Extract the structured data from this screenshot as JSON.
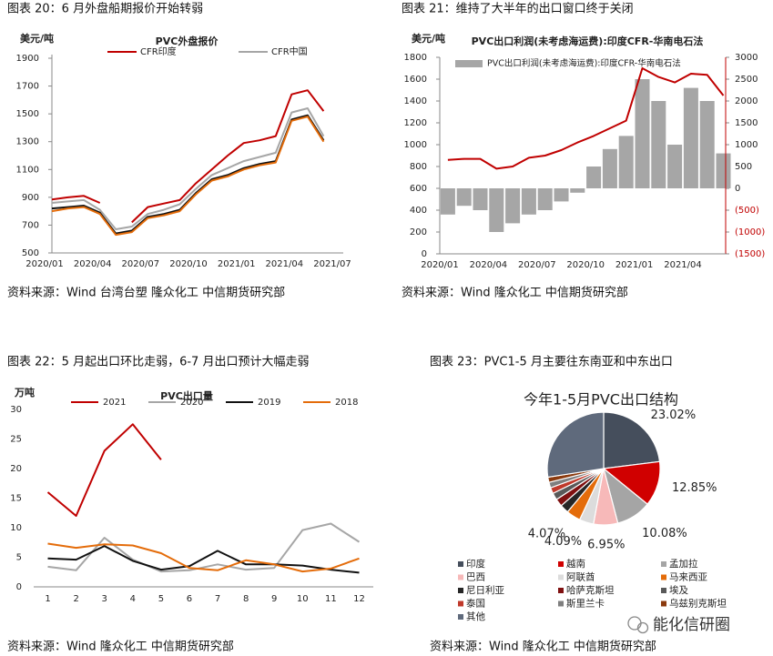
{
  "captions": [
    "图表 20：6 月外盘船期报价开始转弱",
    "图表 21：维持了大半年的出口窗口终于关闭",
    "图表 22：5 月起出口环比走弱，6-7 月出口预计大幅走弱",
    "图表 23：PVC1-5 月主要往东南亚和中东出口"
  ],
  "sources": [
    "资料来源：Wind 台湾台塑 隆众化工 中信期货研究部",
    "资料来源：Wind 隆众化工 中信期货研究部",
    "资料来源：Wind 隆众化工 中信期货研究部",
    "资料来源：Wind 隆众化工 中信期货研究部"
  ],
  "watermark": "能化信研圈",
  "chart_data": [
    {
      "type": "date_line",
      "title": "PVC外盘报价",
      "y_label": "美元/吨",
      "x": [
        "2020/01",
        "2020/02",
        "2020/03",
        "2020/04",
        "2020/05",
        "2020/06",
        "2020/07",
        "2020/08",
        "2020/09",
        "2020/10",
        "2020/11",
        "2020/12",
        "2021/01",
        "2021/02",
        "2021/03",
        "2021/04",
        "2021/05",
        "2021/06"
      ],
      "xticks": [
        "2020/01",
        "2020/04",
        "2020/07",
        "2020/10",
        "2021/01",
        "2021/04",
        "2021/07"
      ],
      "ylim": [
        500,
        1900
      ],
      "yticks": [
        500,
        700,
        900,
        1100,
        1300,
        1500,
        1700,
        1900
      ],
      "series": [
        {
          "name": "CFR印度",
          "color": "#c00000",
          "values": [
            885,
            900,
            910,
            860,
            null,
            720,
            830,
            855,
            880,
            1000,
            1100,
            1200,
            1290,
            1310,
            1340,
            1640,
            1670,
            1520
          ]
        },
        {
          "name": "CFR中国",
          "color": "#a6a6a6",
          "values": [
            860,
            870,
            880,
            810,
            670,
            690,
            780,
            810,
            850,
            960,
            1060,
            1110,
            1160,
            1190,
            1220,
            1510,
            1540,
            1340
          ]
        },
        {
          "color": "#111111",
          "values": [
            820,
            830,
            840,
            790,
            640,
            660,
            760,
            780,
            810,
            930,
            1030,
            1060,
            1110,
            1140,
            1160,
            1460,
            1490,
            1310
          ]
        },
        {
          "color": "#e46c0a",
          "values": [
            800,
            820,
            830,
            780,
            630,
            650,
            750,
            770,
            800,
            920,
            1020,
            1050,
            1100,
            1130,
            1150,
            1450,
            1480,
            1300
          ]
        }
      ]
    },
    {
      "type": "date_bar_line",
      "title": "PVC出口利润(未考虑海运费):印度CFR-华南电石法",
      "y_label": "美元/吨",
      "x": [
        "2020/01",
        "2020/02",
        "2020/03",
        "2020/04",
        "2020/05",
        "2020/06",
        "2020/07",
        "2020/08",
        "2020/09",
        "2020/10",
        "2020/11",
        "2020/12",
        "2021/01",
        "2021/02",
        "2021/03",
        "2021/04",
        "2021/05",
        "2021/06"
      ],
      "xticks": [
        "2020/01",
        "2020/04",
        "2020/07",
        "2020/10",
        "2021/01",
        "2021/04"
      ],
      "ylim": [
        0,
        1800
      ],
      "yticks": [
        0,
        200,
        400,
        600,
        800,
        1000,
        1200,
        1400,
        1600,
        1800
      ],
      "y2lim": [
        -1500,
        3000
      ],
      "y2ticks": [
        {
          "value": -1500,
          "label": "(1500)"
        },
        {
          "value": -1000,
          "label": "(1000)"
        },
        {
          "value": -500,
          "label": "(500)"
        },
        0,
        500,
        1000,
        1500,
        2000,
        2500,
        3000
      ],
      "negative_tick_color": "#c00000",
      "series": [
        {
          "name": "PVC出口利润(未考虑海运费):印度CFR-华南电石法",
          "kind": "bar",
          "axis": "y2",
          "color": "#a6a6a6",
          "values": [
            -600,
            -400,
            -500,
            -1000,
            -800,
            -600,
            -500,
            -300,
            -100,
            500,
            900,
            1200,
            2500,
            2000,
            1000,
            2300,
            2000,
            800
          ]
        },
        {
          "kind": "line",
          "color": "#c00000",
          "values": [
            860,
            870,
            870,
            780,
            800,
            880,
            900,
            950,
            1020,
            1080,
            1150,
            1220,
            1700,
            1620,
            1570,
            1650,
            1640,
            1450
          ]
        }
      ]
    },
    {
      "type": "line",
      "title": "PVC出口量",
      "y_label": "万吨",
      "categories": [
        1,
        2,
        3,
        4,
        5,
        6,
        7,
        8,
        9,
        10,
        11,
        12
      ],
      "ylim": [
        0,
        30
      ],
      "yticks": [
        0,
        5,
        10,
        15,
        20,
        25,
        30
      ],
      "series": [
        {
          "name": "2021",
          "color": "#c00000",
          "values": [
            16,
            12,
            23,
            27.5,
            21.5,
            null,
            null,
            null,
            null,
            null,
            null,
            null
          ]
        },
        {
          "name": "2020",
          "color": "#a6a6a6",
          "values": [
            3.4,
            2.8,
            8.3,
            4.6,
            2.6,
            2.8,
            3.8,
            2.9,
            3.2,
            9.6,
            10.7,
            7.6
          ]
        },
        {
          "name": "2019",
          "color": "#111111",
          "values": [
            4.8,
            4.6,
            6.9,
            4.4,
            2.9,
            3.5,
            6.1,
            3.8,
            3.8,
            3.6,
            2.9,
            2.4
          ]
        },
        {
          "name": "2018",
          "color": "#e46c0a",
          "values": [
            7.3,
            6.6,
            7.2,
            7.0,
            5.7,
            3.2,
            2.8,
            4.5,
            3.8,
            2.6,
            3.1,
            4.8
          ]
        }
      ]
    },
    {
      "type": "pie",
      "title": "今年1-5月PVC出口结构",
      "categories": [
        "印度",
        "越南",
        "孟加拉",
        "巴西",
        "阿联酋",
        "马来西亚",
        "尼日利亚",
        "哈萨克斯坦",
        "埃及",
        "泰国",
        "斯里兰卡",
        "乌兹别克斯坦",
        "其他"
      ],
      "values": [
        23.02,
        12.85,
        10.08,
        6.95,
        4.09,
        4.07,
        2.5,
        2.2,
        2.0,
        1.7,
        1.6,
        1.5,
        27.44
      ],
      "value_labels": [
        "23.02%",
        "12.85%",
        "10.08%",
        "6.95%",
        "4.09%",
        "4.07%",
        null,
        null,
        null,
        null,
        null,
        null,
        null
      ],
      "colors": [
        "#454e5c",
        "#d00000",
        "#a5a5a5",
        "#f7b9b9",
        "#dcdcdc",
        "#e46c0a",
        "#262626",
        "#7f1010",
        "#595959",
        "#c0392b",
        "#7f7f7f",
        "#8b3a0e",
        "#5f6a7c"
      ]
    }
  ]
}
